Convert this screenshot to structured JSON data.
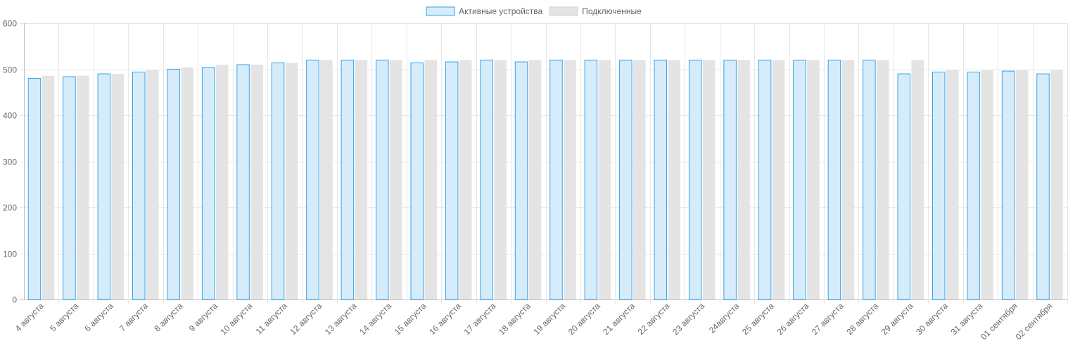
{
  "chart_data": {
    "type": "bar",
    "categories": [
      "4 августа",
      "5 августа",
      "6 августа",
      "7 августа",
      "8 августа",
      "9 августа",
      "10 августа",
      "11 августа",
      "12 августа",
      "13 августа",
      "14 августа",
      "15 августа",
      "16 августа",
      "17 августа",
      "18 августа",
      "19 августа",
      "20 августа",
      "21 августа",
      "22 августа",
      "23 августа",
      "24августа",
      "25 августа",
      "26 августа",
      "27 августа",
      "28 августа",
      "29 августа",
      "30 августа",
      "31 августа",
      "01 сентября",
      "02 сентября"
    ],
    "series": [
      {
        "name": "Активные устройства",
        "color": "#36a2eb",
        "fill": "#d7ecfb",
        "values": [
          480,
          484,
          490,
          494,
          500,
          504,
          510,
          514,
          520,
          520,
          520,
          514,
          516,
          520,
          516,
          520,
          520,
          520,
          520,
          520,
          520,
          520,
          520,
          520,
          520,
          490,
          494,
          494,
          496,
          490
        ]
      },
      {
        "name": "Подключенные",
        "color": "#e4e4e4",
        "fill": "#e4e4e4",
        "values": [
          486,
          486,
          490,
          498,
          504,
          510,
          510,
          514,
          520,
          520,
          520,
          520,
          520,
          520,
          520,
          520,
          520,
          520,
          520,
          520,
          520,
          520,
          520,
          520,
          520,
          520,
          498,
          498,
          498,
          498
        ]
      }
    ],
    "ylim": [
      0,
      600
    ],
    "yticks": [
      "0",
      "100",
      "200",
      "300",
      "400",
      "500",
      "600"
    ],
    "grid": true,
    "legend_position": "top-center"
  }
}
